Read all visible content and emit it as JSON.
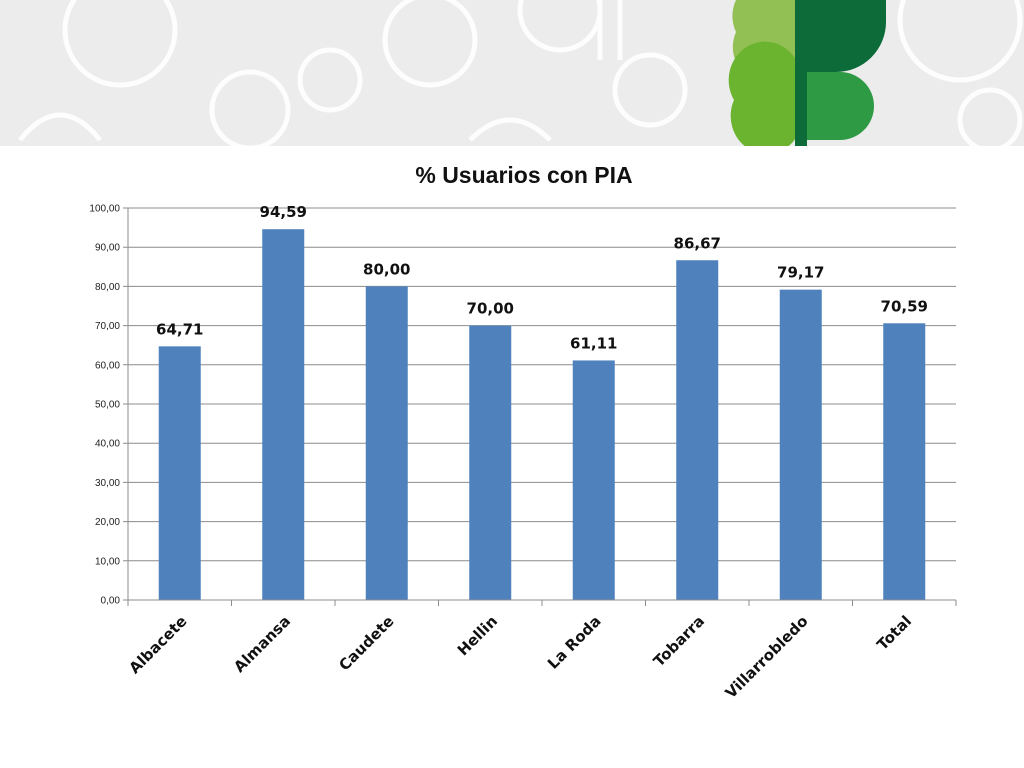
{
  "banner": {
    "logo": "clover-p-logo",
    "background_icon": "flower-outline-pattern",
    "colors": {
      "light_green": "#92c054",
      "dark_green": "#0d6b3a",
      "mid_green": "#2e9a44",
      "lime_green": "#6ab42f"
    }
  },
  "chart_data": {
    "type": "bar",
    "title": "% Usuarios con PIA",
    "categories": [
      "Albacete",
      "Almansa",
      "Caudete",
      "Hellin",
      "La Roda",
      "Tobarra",
      "Villarrobledo",
      "Total"
    ],
    "values": [
      64.71,
      94.59,
      80.0,
      70.0,
      61.11,
      86.67,
      79.17,
      70.59
    ],
    "data_labels": [
      "64,71",
      "94,59",
      "80,00",
      "70,00",
      "61,11",
      "86,67",
      "79,17",
      "70,59"
    ],
    "ylim": [
      0,
      100
    ],
    "ytick_values": [
      0,
      10,
      20,
      30,
      40,
      50,
      60,
      70,
      80,
      90,
      100
    ],
    "ytick_labels": [
      "0,00",
      "10,00",
      "20,00",
      "30,00",
      "40,00",
      "50,00",
      "60,00",
      "70,00",
      "80,00",
      "90,00",
      "100,00"
    ],
    "xlabel": "",
    "ylabel": "",
    "grid": true,
    "legend": "none",
    "bar_color": "#4f81bd"
  }
}
